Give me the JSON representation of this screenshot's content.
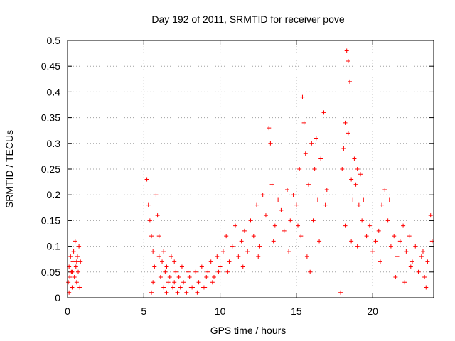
{
  "chart_data": {
    "type": "scatter",
    "title": "Day 192 of 2011, SRMTID for receiver pove",
    "xlabel": "GPS time / hours",
    "ylabel": "SRMTID / TECUs",
    "xlim": [
      0,
      24
    ],
    "ylim": [
      0,
      0.5
    ],
    "x_ticks": [
      0,
      5,
      10,
      15,
      20
    ],
    "x_tick_labels": [
      "0",
      "5",
      "10",
      "15",
      "20"
    ],
    "y_ticks": [
      0,
      0.05,
      0.1,
      0.15,
      0.2,
      0.25,
      0.3,
      0.35,
      0.4,
      0.45,
      0.5
    ],
    "y_tick_labels": [
      "0",
      "0.05",
      "0.1",
      "0.15",
      "0.2",
      "0.25",
      "0.3",
      "0.35",
      "0.4",
      "0.45",
      "0.5"
    ],
    "grid": true,
    "marker": "+",
    "color": "#ff0000",
    "series": [
      {
        "name": "SRMTID",
        "points": [
          [
            0.05,
            0.03
          ],
          [
            0.1,
            0.06
          ],
          [
            0.15,
            0.04
          ],
          [
            0.2,
            0.08
          ],
          [
            0.25,
            0.05
          ],
          [
            0.3,
            0.02
          ],
          [
            0.35,
            0.07
          ],
          [
            0.4,
            0.09
          ],
          [
            0.45,
            0.04
          ],
          [
            0.5,
            0.11
          ],
          [
            0.55,
            0.06
          ],
          [
            0.6,
            0.03
          ],
          [
            0.65,
            0.08
          ],
          [
            0.7,
            0.05
          ],
          [
            0.75,
            0.1
          ],
          [
            0.8,
            0.02
          ],
          [
            0.85,
            0.07
          ],
          [
            0.1,
            0.01
          ],
          [
            0.3,
            0.05
          ],
          [
            0.6,
            0.07
          ],
          [
            5.2,
            0.23
          ],
          [
            5.3,
            0.18
          ],
          [
            5.4,
            0.15
          ],
          [
            5.5,
            0.12
          ],
          [
            5.6,
            0.09
          ],
          [
            5.7,
            0.06
          ],
          [
            5.8,
            0.2
          ],
          [
            5.9,
            0.16
          ],
          [
            6.0,
            0.08
          ],
          [
            6.1,
            0.04
          ],
          [
            6.2,
            0.07
          ],
          [
            6.3,
            0.02
          ],
          [
            6.4,
            0.05
          ],
          [
            6.5,
            0.06
          ],
          [
            6.6,
            0.03
          ],
          [
            6.7,
            0.04
          ],
          [
            6.8,
            0.08
          ],
          [
            6.9,
            0.02
          ],
          [
            7.0,
            0.03
          ],
          [
            7.1,
            0.05
          ],
          [
            7.2,
            0.01
          ],
          [
            7.3,
            0.04
          ],
          [
            7.4,
            0.02
          ],
          [
            7.5,
            0.06
          ],
          [
            5.6,
            0.03
          ],
          [
            6.0,
            0.12
          ],
          [
            6.5,
            0.01
          ],
          [
            7.0,
            0.07
          ],
          [
            5.5,
            0.01
          ],
          [
            6.3,
            0.09
          ],
          [
            7.6,
            0.03
          ],
          [
            7.8,
            0.01
          ],
          [
            8.0,
            0.04
          ],
          [
            8.2,
            0.02
          ],
          [
            8.4,
            0.05
          ],
          [
            8.6,
            0.03
          ],
          [
            8.8,
            0.06
          ],
          [
            9.0,
            0.02
          ],
          [
            9.2,
            0.05
          ],
          [
            9.4,
            0.07
          ],
          [
            9.6,
            0.04
          ],
          [
            9.8,
            0.08
          ],
          [
            10.0,
            0.06
          ],
          [
            8.1,
            0.02
          ],
          [
            8.5,
            0.01
          ],
          [
            9.1,
            0.04
          ],
          [
            9.5,
            0.03
          ],
          [
            9.9,
            0.05
          ],
          [
            7.9,
            0.05
          ],
          [
            8.9,
            0.02
          ],
          [
            10.2,
            0.09
          ],
          [
            10.4,
            0.12
          ],
          [
            10.6,
            0.07
          ],
          [
            10.8,
            0.1
          ],
          [
            11.0,
            0.14
          ],
          [
            11.2,
            0.08
          ],
          [
            11.4,
            0.11
          ],
          [
            11.6,
            0.13
          ],
          [
            11.8,
            0.09
          ],
          [
            12.0,
            0.15
          ],
          [
            12.2,
            0.12
          ],
          [
            12.4,
            0.18
          ],
          [
            12.6,
            0.1
          ],
          [
            12.8,
            0.2
          ],
          [
            13.0,
            0.16
          ],
          [
            13.2,
            0.33
          ],
          [
            13.3,
            0.3
          ],
          [
            13.4,
            0.22
          ],
          [
            13.6,
            0.14
          ],
          [
            13.8,
            0.19
          ],
          [
            14.0,
            0.17
          ],
          [
            14.2,
            0.13
          ],
          [
            14.4,
            0.21
          ],
          [
            14.6,
            0.15
          ],
          [
            14.8,
            0.2
          ],
          [
            10.5,
            0.05
          ],
          [
            11.5,
            0.06
          ],
          [
            12.5,
            0.08
          ],
          [
            13.5,
            0.11
          ],
          [
            14.5,
            0.09
          ],
          [
            15.0,
            0.18
          ],
          [
            15.2,
            0.25
          ],
          [
            15.4,
            0.39
          ],
          [
            15.5,
            0.34
          ],
          [
            15.6,
            0.28
          ],
          [
            15.8,
            0.22
          ],
          [
            16.0,
            0.3
          ],
          [
            16.2,
            0.25
          ],
          [
            16.4,
            0.19
          ],
          [
            16.6,
            0.27
          ],
          [
            16.8,
            0.36
          ],
          [
            17.0,
            0.21
          ],
          [
            15.3,
            0.12
          ],
          [
            15.7,
            0.08
          ],
          [
            16.1,
            0.15
          ],
          [
            16.5,
            0.11
          ],
          [
            16.9,
            0.18
          ],
          [
            15.9,
            0.05
          ],
          [
            16.3,
            0.31
          ],
          [
            15.1,
            0.14
          ],
          [
            17.9,
            0.01
          ],
          [
            18.0,
            0.25
          ],
          [
            18.1,
            0.29
          ],
          [
            18.2,
            0.34
          ],
          [
            18.3,
            0.48
          ],
          [
            18.4,
            0.46
          ],
          [
            18.5,
            0.42
          ],
          [
            18.6,
            0.23
          ],
          [
            18.7,
            0.19
          ],
          [
            18.8,
            0.27
          ],
          [
            18.9,
            0.22
          ],
          [
            19.0,
            0.25
          ],
          [
            19.1,
            0.18
          ],
          [
            19.2,
            0.24
          ],
          [
            19.3,
            0.15
          ],
          [
            19.4,
            0.19
          ],
          [
            18.2,
            0.14
          ],
          [
            18.6,
            0.11
          ],
          [
            19.0,
            0.1
          ],
          [
            18.4,
            0.32
          ],
          [
            19.6,
            0.12
          ],
          [
            19.8,
            0.14
          ],
          [
            20.0,
            0.09
          ],
          [
            20.2,
            0.11
          ],
          [
            20.4,
            0.13
          ],
          [
            20.6,
            0.18
          ],
          [
            20.8,
            0.21
          ],
          [
            21.0,
            0.15
          ],
          [
            21.2,
            0.1
          ],
          [
            21.4,
            0.12
          ],
          [
            21.6,
            0.08
          ],
          [
            21.8,
            0.11
          ],
          [
            22.0,
            0.14
          ],
          [
            22.2,
            0.09
          ],
          [
            22.4,
            0.12
          ],
          [
            22.6,
            0.07
          ],
          [
            22.8,
            0.1
          ],
          [
            23.0,
            0.05
          ],
          [
            23.2,
            0.08
          ],
          [
            23.4,
            0.04
          ],
          [
            23.6,
            0.07
          ],
          [
            23.8,
            0.16
          ],
          [
            21.5,
            0.04
          ],
          [
            22.5,
            0.06
          ],
          [
            23.5,
            0.02
          ],
          [
            20.5,
            0.07
          ],
          [
            21.1,
            0.19
          ],
          [
            22.1,
            0.03
          ],
          [
            23.9,
            0.11
          ],
          [
            23.3,
            0.09
          ]
        ]
      }
    ]
  }
}
